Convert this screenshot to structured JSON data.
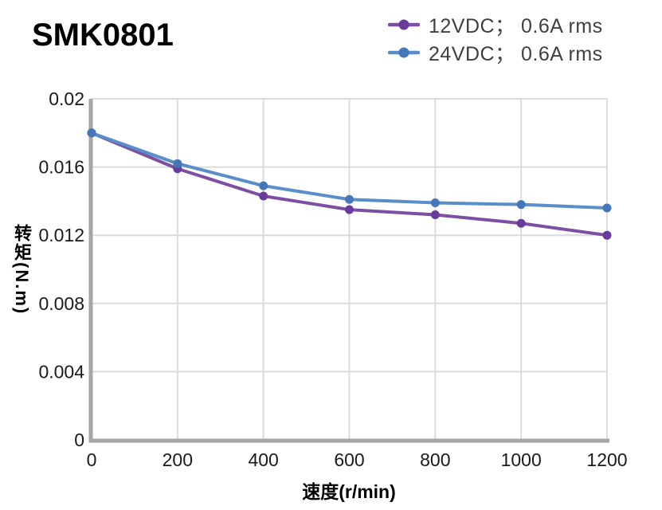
{
  "page": {
    "title": "SMK0801"
  },
  "chart_data": {
    "type": "line",
    "title": "SMK0801",
    "xlabel": "速度(r/min)",
    "ylabel": "转矩(N.m)",
    "xlim": [
      0,
      1200
    ],
    "ylim": [
      0,
      0.02
    ],
    "grid": true,
    "legend_position": "top-right",
    "x": [
      0,
      200,
      400,
      600,
      800,
      1000,
      1200
    ],
    "series": [
      {
        "name": "12VDC； 0.6A rms",
        "values": [
          0.018,
          0.0159,
          0.0143,
          0.0135,
          0.0132,
          0.0127,
          0.012
        ],
        "line_color": "#7b4fa3",
        "marker_color": "#6a3b9d"
      },
      {
        "name": "24VDC； 0.6A rms",
        "values": [
          0.018,
          0.0162,
          0.0149,
          0.0141,
          0.0139,
          0.0138,
          0.0136
        ],
        "line_color": "#5a8ec8",
        "marker_color": "#4477b9"
      }
    ],
    "x_ticks": {
      "values": [
        0,
        200,
        400,
        600,
        800,
        1000,
        1200
      ],
      "labels": [
        "0",
        "200",
        "400",
        "600",
        "800",
        "1000",
        "1200"
      ]
    },
    "y_ticks": {
      "values": [
        0,
        0.004,
        0.008,
        0.012,
        0.016,
        0.02
      ],
      "labels": [
        "0",
        "0.004",
        "0.008",
        "0.012",
        "0.016",
        "0.02"
      ]
    },
    "colors": {
      "grid": "#dcdcdc",
      "axis": "#a6a6a6",
      "tick_label": "#1a1a1a",
      "legend_text": "#3f3f3f",
      "title_text": "#000000"
    }
  }
}
